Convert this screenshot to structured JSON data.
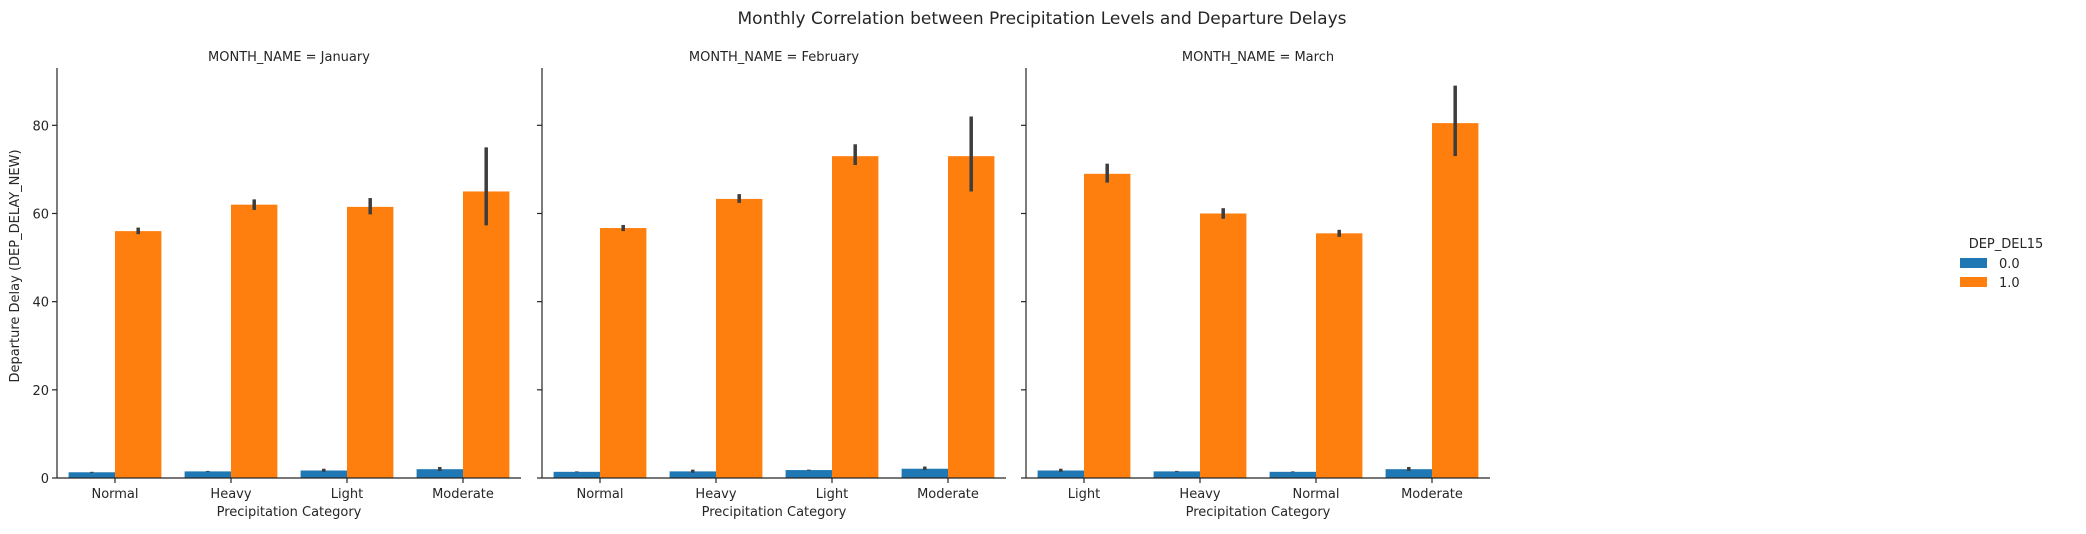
{
  "chart_data": {
    "type": "bar",
    "title": "Monthly Correlation between Precipitation Levels and Departure Delays",
    "ylabel": "Departure Delay (DEP_DELAY_NEW)",
    "xlabel": "Precipitation Category",
    "ylim": [
      0,
      93
    ],
    "yticks": [
      0,
      20,
      40,
      60,
      80
    ],
    "grid": false,
    "legend": {
      "title": "DEP_DEL15",
      "placement": "right",
      "entries": [
        {
          "label": "0.0",
          "color": "#1f77b4"
        },
        {
          "label": "1.0",
          "color": "#ff7f0e"
        }
      ]
    },
    "panels": [
      {
        "title": "MONTH_NAME = January",
        "categories": [
          "Normal",
          "Heavy",
          "Light",
          "Moderate"
        ],
        "series": [
          {
            "name": "0.0",
            "values": [
              1.3,
              1.5,
              1.7,
              2.0
            ],
            "ci": [
              [
                1.2,
                1.4
              ],
              [
                1.4,
                1.6
              ],
              [
                1.4,
                2.1
              ],
              [
                1.6,
                2.5
              ]
            ]
          },
          {
            "name": "1.0",
            "values": [
              56.0,
              62.0,
              61.5,
              65.0
            ],
            "ci": [
              [
                55.3,
                56.8
              ],
              [
                60.8,
                63.2
              ],
              [
                59.8,
                63.5
              ],
              [
                57.3,
                75.0
              ]
            ]
          }
        ]
      },
      {
        "title": "MONTH_NAME = February",
        "categories": [
          "Normal",
          "Heavy",
          "Light",
          "Moderate"
        ],
        "series": [
          {
            "name": "0.0",
            "values": [
              1.4,
              1.5,
              1.8,
              2.1
            ],
            "ci": [
              [
                1.3,
                1.5
              ],
              [
                1.2,
                1.9
              ],
              [
                1.7,
                1.9
              ],
              [
                1.8,
                2.6
              ]
            ]
          },
          {
            "name": "1.0",
            "values": [
              56.7,
              63.3,
              73.0,
              73.0
            ],
            "ci": [
              [
                56.0,
                57.4
              ],
              [
                62.4,
                64.4
              ],
              [
                71.0,
                75.7
              ],
              [
                65.0,
                82.0
              ]
            ]
          }
        ]
      },
      {
        "title": "MONTH_NAME = March",
        "categories": [
          "Light",
          "Heavy",
          "Normal",
          "Moderate"
        ],
        "series": [
          {
            "name": "0.0",
            "values": [
              1.7,
              1.5,
              1.4,
              2.0
            ],
            "ci": [
              [
                1.4,
                2.1
              ],
              [
                1.4,
                1.6
              ],
              [
                1.3,
                1.5
              ],
              [
                1.6,
                2.5
              ]
            ]
          },
          {
            "name": "1.0",
            "values": [
              69.0,
              60.0,
              55.5,
              80.5
            ],
            "ci": [
              [
                67.0,
                71.3
              ],
              [
                58.8,
                61.2
              ],
              [
                54.7,
                56.3
              ],
              [
                73.0,
                89.0
              ]
            ]
          }
        ]
      }
    ]
  }
}
